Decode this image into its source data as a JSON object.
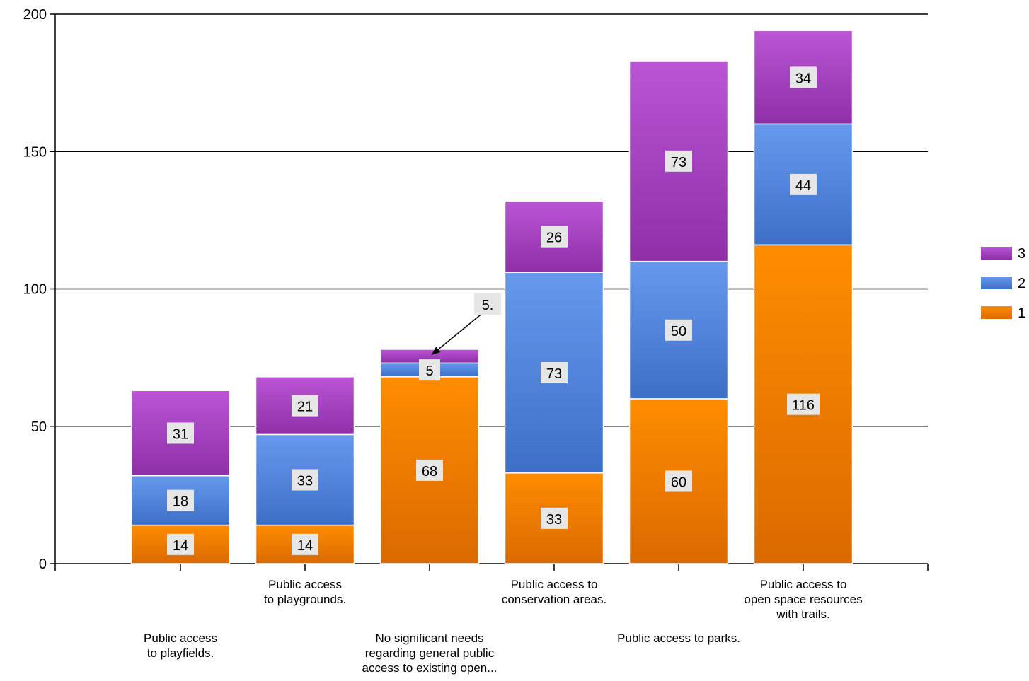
{
  "chart_data": {
    "type": "bar",
    "stacked": true,
    "categories": [
      "Public access to playfields.",
      "Public access to playgrounds.",
      "No significant needs regarding general public access to existing open...",
      "Public access to conservation areas.",
      "Public access to parks.",
      "Public access to open space resources with trails."
    ],
    "category_label_lines": [
      [
        "Public access",
        "to playfields."
      ],
      [
        "Public access",
        "to playgrounds."
      ],
      [
        "No significant needs",
        "regarding general public",
        "access to existing open..."
      ],
      [
        "Public access to",
        "conservation areas."
      ],
      [
        "Public access to parks."
      ],
      [
        "Public access to",
        "open space resources",
        "with trails."
      ]
    ],
    "category_label_rows": [
      "lower",
      "upper",
      "lower",
      "upper",
      "lower",
      "upper"
    ],
    "series": [
      {
        "name": "1",
        "values": [
          14,
          14,
          68,
          33,
          60,
          116
        ],
        "color_top": "#ff8c00",
        "color_bottom": "#db6a00"
      },
      {
        "name": "2",
        "values": [
          18,
          33,
          5,
          73,
          50,
          44
        ],
        "color_top": "#6699ee",
        "color_bottom": "#3d6fc7"
      },
      {
        "name": "3",
        "values": [
          31,
          21,
          5,
          26,
          73,
          34
        ],
        "color_top": "#bb55d6",
        "color_bottom": "#8e2fa8"
      }
    ],
    "data_label_callouts": [
      {
        "series": "3",
        "category_index": 2,
        "text": "5."
      }
    ],
    "yticks": [
      0,
      50,
      100,
      150,
      200
    ],
    "ylim": [
      0,
      200
    ],
    "grid": true,
    "legend_position": "right",
    "legend_order": [
      "3",
      "2",
      "1"
    ],
    "title": "",
    "xlabel": "",
    "ylabel": ""
  }
}
